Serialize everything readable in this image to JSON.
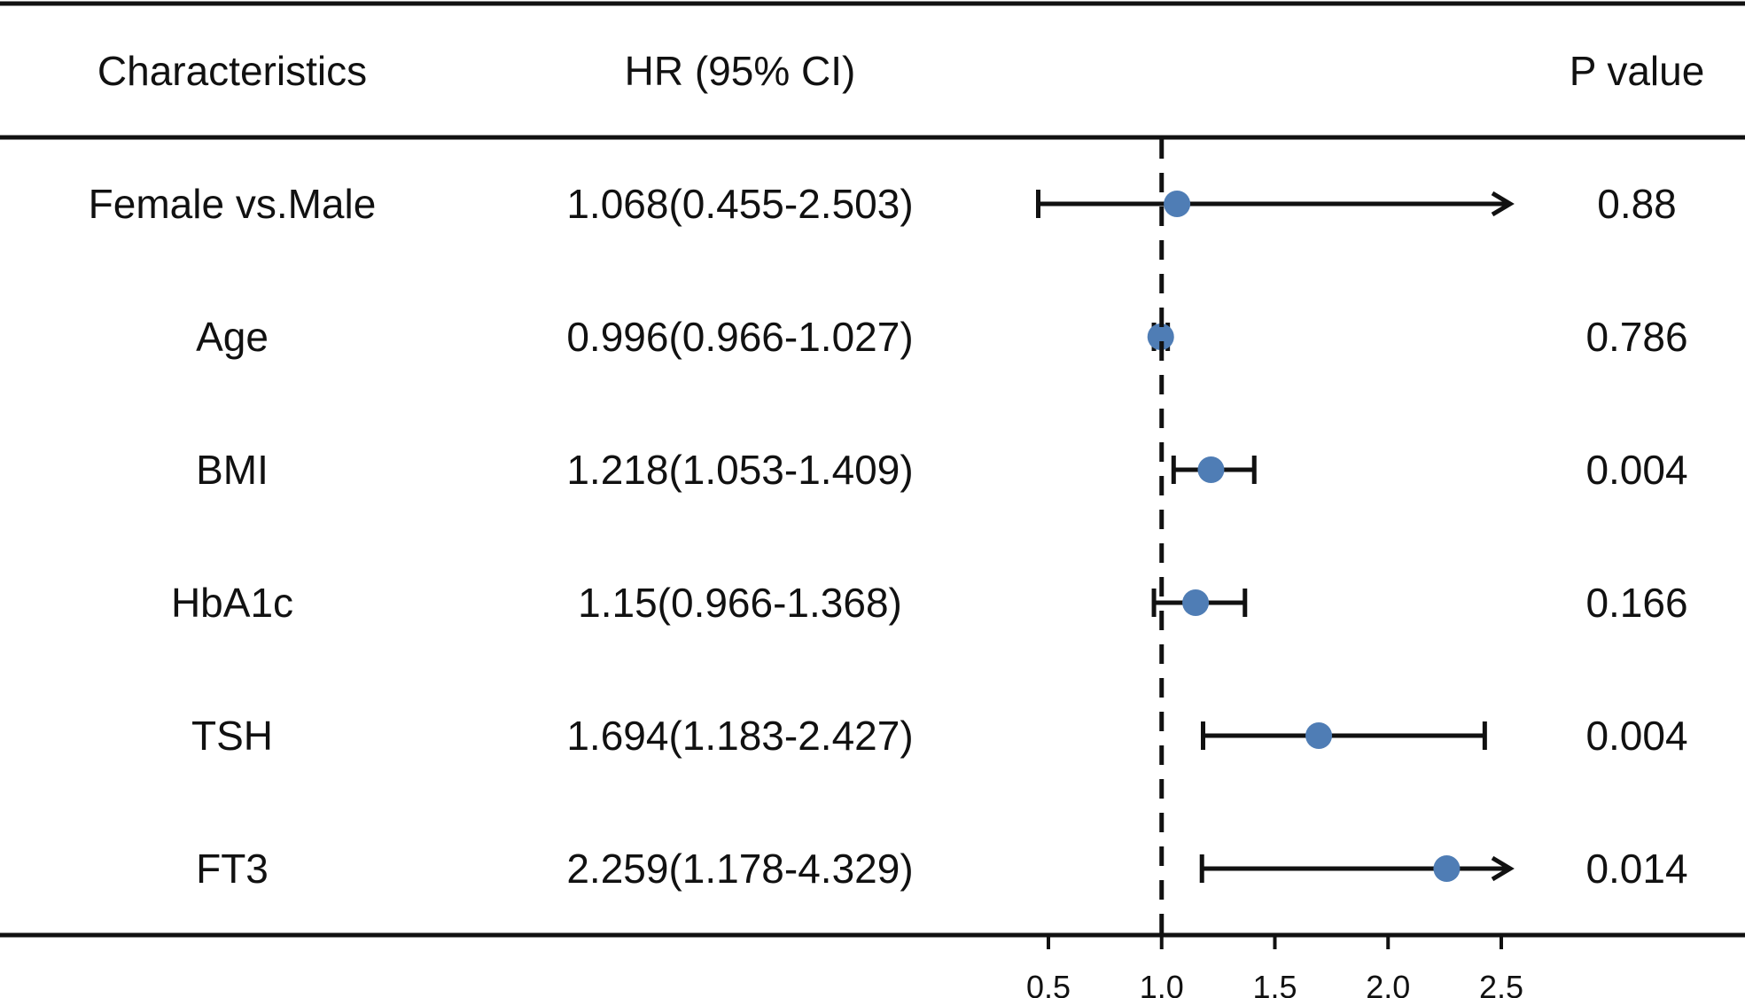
{
  "headers": {
    "characteristics": "Characteristics",
    "hr": "HR (95% CI)",
    "p": "P value"
  },
  "chart_data": {
    "type": "forest",
    "reference_line": 1.0,
    "xlim": [
      0.5,
      2.5
    ],
    "xticks": [
      "0.5",
      "1.0",
      "1.5",
      "2.0",
      "2.5"
    ],
    "point_color": "#4f7db5",
    "rows": [
      {
        "label": "Female vs.Male",
        "hr": 1.068,
        "lower": 0.455,
        "upper": 2.503,
        "hr_text": "1.068(0.455-2.503)",
        "p": "0.88"
      },
      {
        "label": "Age",
        "hr": 0.996,
        "lower": 0.966,
        "upper": 1.027,
        "hr_text": "0.996(0.966-1.027)",
        "p": "0.786"
      },
      {
        "label": "BMI",
        "hr": 1.218,
        "lower": 1.053,
        "upper": 1.409,
        "hr_text": "1.218(1.053-1.409)",
        "p": "0.004"
      },
      {
        "label": "HbA1c",
        "hr": 1.15,
        "lower": 0.966,
        "upper": 1.368,
        "hr_text": "1.15(0.966-1.368)",
        "p": "0.166"
      },
      {
        "label": "TSH",
        "hr": 1.694,
        "lower": 1.183,
        "upper": 2.427,
        "hr_text": "1.694(1.183-2.427)",
        "p": "0.004"
      },
      {
        "label": "FT3",
        "hr": 2.259,
        "lower": 1.178,
        "upper": 4.329,
        "hr_text": "2.259(1.178-4.329)",
        "p": "0.014"
      }
    ]
  }
}
